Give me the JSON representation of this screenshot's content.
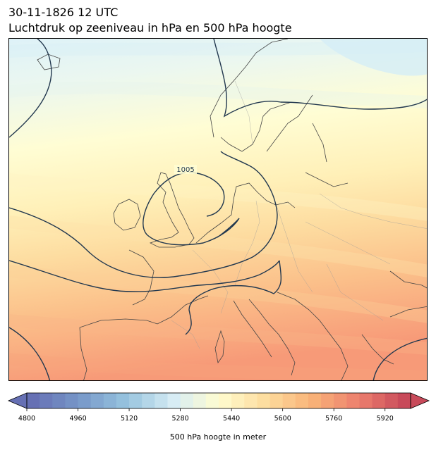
{
  "title": {
    "date_line": "30-11-1826 12 UTC",
    "subtitle": "Luchtdruk op zeeniveau in hPa en 500 hPa hoogte"
  },
  "map": {
    "region": "Europe",
    "isobar_label": "1005",
    "isobar_color": "#22384f"
  },
  "colorbar": {
    "label": "500 hPa hoogte in meter",
    "ticks": [
      "4800",
      "4960",
      "5120",
      "5280",
      "5440",
      "5600",
      "5760",
      "5920"
    ],
    "min": 4800,
    "max": 6000,
    "step": 40,
    "extend": "both"
  },
  "colors": {
    "low": "#6670b4",
    "mid": "#fffcd0",
    "high": "#c84a5a"
  }
}
